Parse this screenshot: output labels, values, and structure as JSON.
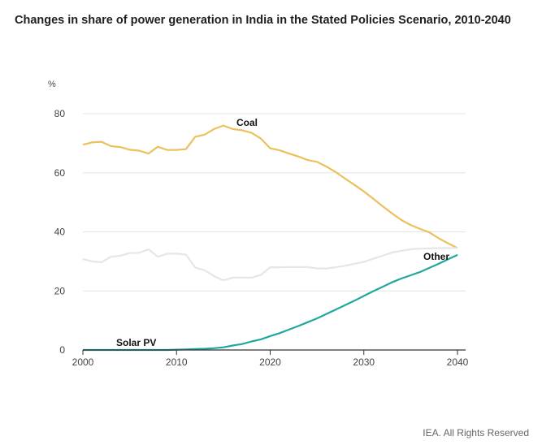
{
  "chart_data": {
    "type": "line",
    "title": "Changes in share of power generation in India in the Stated Policies Scenario, 2010-2040",
    "xlabel": "",
    "ylabel": "%",
    "xlim": [
      2000,
      2040
    ],
    "ylim": [
      0,
      80
    ],
    "xticks": [
      2000,
      2010,
      2020,
      2030,
      2040
    ],
    "yticks": [
      0,
      20,
      40,
      60,
      80
    ],
    "grid": "horizontal",
    "series": [
      {
        "name": "Coal",
        "color": "#ecc05a",
        "x": [
          2000,
          2001,
          2002,
          2003,
          2004,
          2005,
          2006,
          2007,
          2008,
          2009,
          2010,
          2011,
          2012,
          2013,
          2014,
          2015,
          2016,
          2017,
          2018,
          2019,
          2020,
          2021,
          2022,
          2023,
          2024,
          2025,
          2026,
          2027,
          2028,
          2029,
          2030,
          2031,
          2032,
          2033,
          2034,
          2035,
          2036,
          2037,
          2038,
          2039,
          2040
        ],
        "values": [
          69.5,
          70.3,
          70.5,
          69.0,
          68.7,
          67.8,
          67.5,
          66.5,
          68.8,
          67.7,
          67.7,
          68.0,
          72.2,
          72.9,
          74.8,
          76.0,
          74.8,
          74.4,
          73.5,
          71.6,
          68.3,
          67.6,
          66.5,
          65.5,
          64.3,
          63.7,
          62.1,
          60.2,
          58.0,
          55.9,
          53.7,
          51.2,
          48.7,
          46.3,
          44.0,
          42.3,
          41.0,
          39.8,
          37.8,
          36.1,
          34.5
        ]
      },
      {
        "name": "Other",
        "color": "#e6e6e6",
        "x": [
          2000,
          2001,
          2002,
          2003,
          2004,
          2005,
          2006,
          2007,
          2008,
          2009,
          2010,
          2011,
          2012,
          2013,
          2014,
          2015,
          2016,
          2017,
          2018,
          2019,
          2020,
          2021,
          2022,
          2023,
          2024,
          2025,
          2026,
          2027,
          2028,
          2029,
          2030,
          2031,
          2032,
          2033,
          2034,
          2035,
          2036,
          2037,
          2038,
          2039,
          2040
        ],
        "values": [
          30.8,
          30.0,
          29.7,
          31.6,
          31.9,
          32.8,
          32.9,
          34.1,
          31.6,
          32.6,
          32.6,
          32.3,
          27.9,
          27.0,
          25.0,
          23.6,
          24.5,
          24.5,
          24.5,
          25.4,
          28.0,
          28.0,
          28.1,
          28.1,
          28.1,
          27.6,
          27.6,
          28.0,
          28.5,
          29.2,
          29.8,
          30.9,
          31.9,
          33.0,
          33.6,
          34.1,
          34.3,
          34.4,
          34.5,
          34.5,
          34.5
        ]
      },
      {
        "name": "Solar PV",
        "color": "#1fa89c",
        "x": [
          2000,
          2001,
          2002,
          2003,
          2004,
          2005,
          2006,
          2007,
          2008,
          2009,
          2010,
          2011,
          2012,
          2013,
          2014,
          2015,
          2016,
          2017,
          2018,
          2019,
          2020,
          2021,
          2022,
          2023,
          2024,
          2025,
          2026,
          2027,
          2028,
          2029,
          2030,
          2031,
          2032,
          2033,
          2034,
          2035,
          2036,
          2037,
          2038,
          2039,
          2040
        ],
        "values": [
          0,
          0,
          0,
          0,
          0,
          0,
          0,
          0,
          0,
          0,
          0.1,
          0.2,
          0.3,
          0.4,
          0.6,
          0.9,
          1.5,
          2.0,
          2.9,
          3.6,
          4.7,
          5.7,
          6.9,
          8.1,
          9.4,
          10.7,
          12.2,
          13.7,
          15.2,
          16.7,
          18.3,
          19.9,
          21.4,
          22.9,
          24.2,
          25.3,
          26.4,
          27.8,
          29.2,
          30.7,
          32.2
        ]
      }
    ],
    "annotations": [
      {
        "text": "Coal",
        "series": "Coal"
      },
      {
        "text": "Other",
        "series": "Other"
      },
      {
        "text": "Solar PV",
        "series": "Solar PV"
      }
    ]
  },
  "footer": "IEA. All Rights Reserved"
}
